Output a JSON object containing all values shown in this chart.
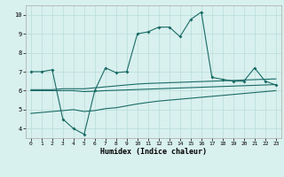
{
  "xlabel": "Humidex (Indice chaleur)",
  "bg_color": "#d8f0ee",
  "grid_color": "#b8dcd8",
  "line_color": "#1a6b66",
  "xlim": [
    -0.5,
    23.5
  ],
  "ylim": [
    3.5,
    10.5
  ],
  "xticks": [
    0,
    1,
    2,
    3,
    4,
    5,
    6,
    7,
    8,
    9,
    10,
    11,
    12,
    13,
    14,
    15,
    16,
    17,
    18,
    19,
    20,
    21,
    22,
    23
  ],
  "yticks": [
    4,
    5,
    6,
    7,
    8,
    9,
    10
  ],
  "line1_x": [
    0,
    1,
    2,
    3,
    4,
    5,
    6,
    7,
    8,
    9,
    10,
    11,
    12,
    13,
    14,
    15,
    16,
    17,
    18,
    19,
    20,
    21,
    22,
    23
  ],
  "line1_y": [
    7.0,
    7.0,
    7.1,
    4.5,
    4.0,
    3.7,
    6.0,
    7.2,
    6.95,
    7.0,
    9.0,
    9.1,
    9.35,
    9.35,
    8.85,
    9.75,
    10.15,
    6.7,
    6.6,
    6.5,
    6.5,
    7.2,
    6.5,
    6.3
  ],
  "line2_x": [
    0,
    1,
    2,
    3,
    4,
    5,
    6,
    7,
    8,
    9,
    10,
    11,
    12,
    13,
    14,
    15,
    16,
    17,
    18,
    19,
    20,
    21,
    22,
    23
  ],
  "line2_y": [
    6.05,
    6.05,
    6.05,
    6.1,
    6.1,
    6.1,
    6.15,
    6.2,
    6.25,
    6.3,
    6.35,
    6.38,
    6.4,
    6.42,
    6.44,
    6.46,
    6.48,
    6.5,
    6.52,
    6.54,
    6.56,
    6.58,
    6.6,
    6.62
  ],
  "line3_x": [
    0,
    1,
    2,
    3,
    4,
    5,
    6,
    7,
    8,
    9,
    10,
    11,
    12,
    13,
    14,
    15,
    16,
    17,
    18,
    19,
    20,
    21,
    22,
    23
  ],
  "line3_y": [
    6.0,
    6.0,
    6.0,
    6.0,
    6.0,
    5.95,
    5.97,
    6.0,
    6.02,
    6.04,
    6.06,
    6.08,
    6.1,
    6.12,
    6.14,
    6.16,
    6.18,
    6.2,
    6.22,
    6.24,
    6.26,
    6.28,
    6.3,
    6.32
  ],
  "line4_x": [
    0,
    1,
    2,
    3,
    4,
    5,
    6,
    7,
    8,
    9,
    10,
    11,
    12,
    13,
    14,
    15,
    16,
    17,
    18,
    19,
    20,
    21,
    22,
    23
  ],
  "line4_y": [
    4.8,
    4.85,
    4.9,
    4.95,
    5.0,
    4.9,
    4.95,
    5.05,
    5.1,
    5.2,
    5.3,
    5.38,
    5.45,
    5.5,
    5.55,
    5.6,
    5.65,
    5.7,
    5.75,
    5.8,
    5.85,
    5.9,
    5.95,
    6.0
  ]
}
